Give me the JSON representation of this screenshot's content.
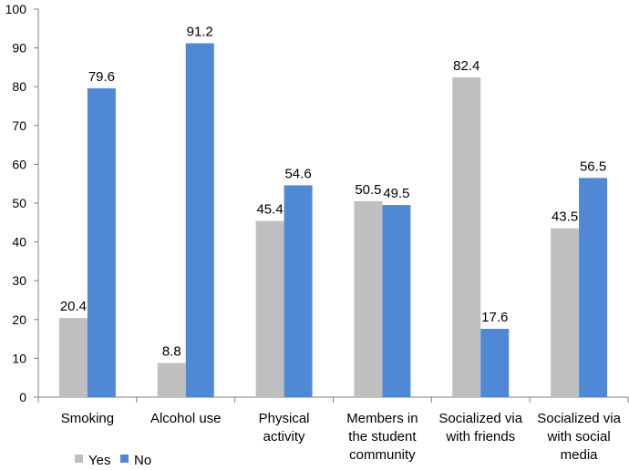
{
  "chart_data": {
    "type": "bar",
    "title": "",
    "xlabel": "",
    "ylabel": "",
    "ylim": [
      0,
      100
    ],
    "yticks": [
      0,
      10,
      20,
      30,
      40,
      50,
      60,
      70,
      80,
      90,
      100
    ],
    "categories": [
      [
        "Smoking"
      ],
      [
        "Alcohol use"
      ],
      [
        "Physical",
        "activity"
      ],
      [
        "Members in",
        "the student",
        "community"
      ],
      [
        "Socialized via",
        "with friends"
      ],
      [
        "Socialized via",
        "with social",
        "media"
      ]
    ],
    "series": [
      {
        "name": "Yes",
        "values": [
          20.4,
          8.8,
          45.4,
          50.5,
          82.4,
          43.5
        ],
        "labels": [
          "20.4",
          "8.8",
          "45.4",
          "50.5",
          "82.4",
          "43.5"
        ]
      },
      {
        "name": "No",
        "values": [
          79.6,
          91.2,
          54.6,
          49.5,
          17.6,
          56.5
        ],
        "labels": [
          "79.6",
          "91.2",
          "54.6",
          "49.5",
          "17.6",
          "56.5"
        ]
      }
    ],
    "colors": {
      "Yes": "#bfbfbf",
      "No": "#4f89d6"
    },
    "legend": "bottom-left"
  }
}
